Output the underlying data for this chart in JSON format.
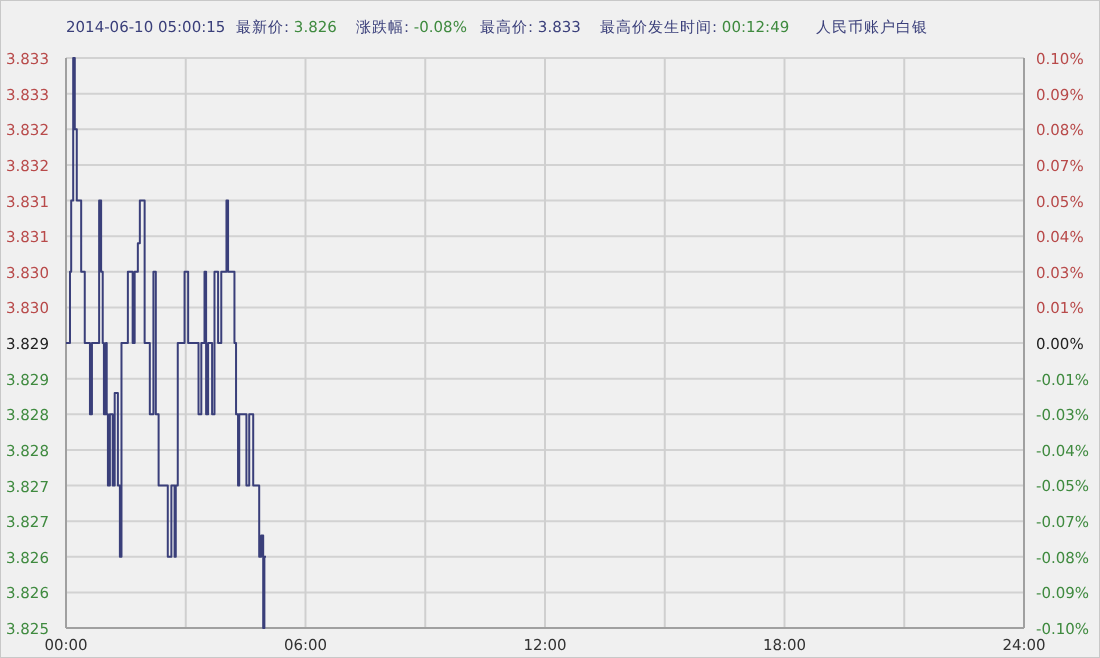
{
  "chart_data": {
    "type": "step",
    "annotations": [
      "2014-06-10 05:00:15",
      "最新价: 3.826",
      "涨跌幅: -0.08%",
      "最高价: 3.833",
      "最高价发生时间: 00:12:49",
      "人民币账户白银"
    ],
    "x": [
      0,
      0.1,
      0.13,
      0.18,
      0.22,
      0.27,
      0.35,
      0.38,
      0.45,
      0.47,
      0.58,
      0.6,
      0.65,
      0.8,
      0.83,
      0.88,
      0.92,
      0.95,
      1.0,
      1.02,
      1.05,
      1.1,
      1.17,
      1.22,
      1.3,
      1.35,
      1.39,
      1.52,
      1.55,
      1.67,
      1.72,
      1.8,
      1.85,
      1.92,
      1.97,
      2.05,
      2.1,
      2.19,
      2.25,
      2.32,
      2.47,
      2.55,
      2.64,
      2.72,
      2.75,
      2.8,
      2.92,
      2.97,
      3.06,
      3.26,
      3.32,
      3.39,
      3.47,
      3.51,
      3.56,
      3.66,
      3.72,
      3.81,
      3.89,
      4.02,
      4.06,
      4.14,
      4.22,
      4.26,
      4.31,
      4.34,
      4.47,
      4.52,
      4.59,
      4.66,
      4.69,
      4.81,
      4.84,
      4.89,
      4.94,
      4.97,
      5.01
    ],
    "series": [
      {
        "color": "#3a3f7a",
        "values": [
          3.829,
          3.83,
          3.831,
          3.833,
          3.832,
          3.831,
          3.831,
          3.83,
          3.83,
          3.829,
          3.829,
          3.828,
          3.829,
          3.829,
          3.831,
          3.83,
          3.829,
          3.828,
          3.829,
          3.828,
          3.827,
          3.828,
          3.827,
          3.8283,
          3.827,
          3.826,
          3.829,
          3.829,
          3.83,
          3.829,
          3.83,
          3.8304,
          3.831,
          3.831,
          3.829,
          3.829,
          3.828,
          3.83,
          3.828,
          3.827,
          3.827,
          3.826,
          3.827,
          3.826,
          3.827,
          3.829,
          3.829,
          3.83,
          3.829,
          3.829,
          3.828,
          3.829,
          3.83,
          3.828,
          3.829,
          3.828,
          3.83,
          3.829,
          3.83,
          3.831,
          3.83,
          3.83,
          3.829,
          3.828,
          3.827,
          3.828,
          3.828,
          3.827,
          3.828,
          3.828,
          3.827,
          3.827,
          3.826,
          3.8263,
          3.825,
          3.826,
          3.826
        ]
      }
    ],
    "xlim": [
      0,
      24
    ],
    "xticks": [
      {
        "value": 0,
        "label": "00:00"
      },
      {
        "value": 3,
        "label": null
      },
      {
        "value": 6,
        "label": "06:00"
      },
      {
        "value": 9,
        "label": null
      },
      {
        "value": 12,
        "label": "12:00"
      },
      {
        "value": 15,
        "label": null
      },
      {
        "value": 18,
        "label": "18:00"
      },
      {
        "value": 21,
        "label": null
      },
      {
        "value": 24,
        "label": "24:00"
      }
    ],
    "ylim": [
      3.825,
      3.833
    ],
    "yticks": [
      {
        "value": 3.825,
        "label": "3.825"
      },
      {
        "value": 3.8255,
        "label": "3.826"
      },
      {
        "value": 3.826,
        "label": "3.826"
      },
      {
        "value": 3.8265,
        "label": "3.827"
      },
      {
        "value": 3.827,
        "label": "3.827"
      },
      {
        "value": 3.8275,
        "label": "3.828"
      },
      {
        "value": 3.828,
        "label": "3.828"
      },
      {
        "value": 3.8285,
        "label": "3.829"
      },
      {
        "value": 3.829,
        "label": "3.829"
      },
      {
        "value": 3.8295,
        "label": "3.830"
      },
      {
        "value": 3.83,
        "label": "3.830"
      },
      {
        "value": 3.8305,
        "label": "3.831"
      },
      {
        "value": 3.831,
        "label": "3.831"
      },
      {
        "value": 3.8315,
        "label": "3.832"
      },
      {
        "value": 3.832,
        "label": "3.832"
      },
      {
        "value": 3.8325,
        "label": "3.833"
      },
      {
        "value": 3.833,
        "label": "3.833"
      }
    ],
    "y2lim": [
      -0.1045,
      0.1045
    ],
    "y2ticks": [
      {
        "value": -0.1045,
        "label": "-0.10%"
      },
      {
        "value": -0.0914,
        "label": "-0.09%"
      },
      {
        "value": -0.0783,
        "label": "-0.08%"
      },
      {
        "value": -0.0653,
        "label": "-0.07%"
      },
      {
        "value": -0.0522,
        "label": "-0.05%"
      },
      {
        "value": -0.0392,
        "label": "-0.04%"
      },
      {
        "value": -0.0261,
        "label": "-0.03%"
      },
      {
        "value": -0.0131,
        "label": "-0.01%"
      },
      {
        "value": 0,
        "label": "0.00%"
      },
      {
        "value": 0.0131,
        "label": "0.01%"
      },
      {
        "value": 0.0261,
        "label": "0.03%"
      },
      {
        "value": 0.0392,
        "label": "0.04%"
      },
      {
        "value": 0.0522,
        "label": "0.05%"
      },
      {
        "value": 0.0653,
        "label": "0.07%"
      },
      {
        "value": 0.0783,
        "label": "0.08%"
      },
      {
        "value": 0.0914,
        "label": "0.09%"
      },
      {
        "value": 0.1045,
        "label": "0.10%"
      }
    ],
    "grid": true
  }
}
